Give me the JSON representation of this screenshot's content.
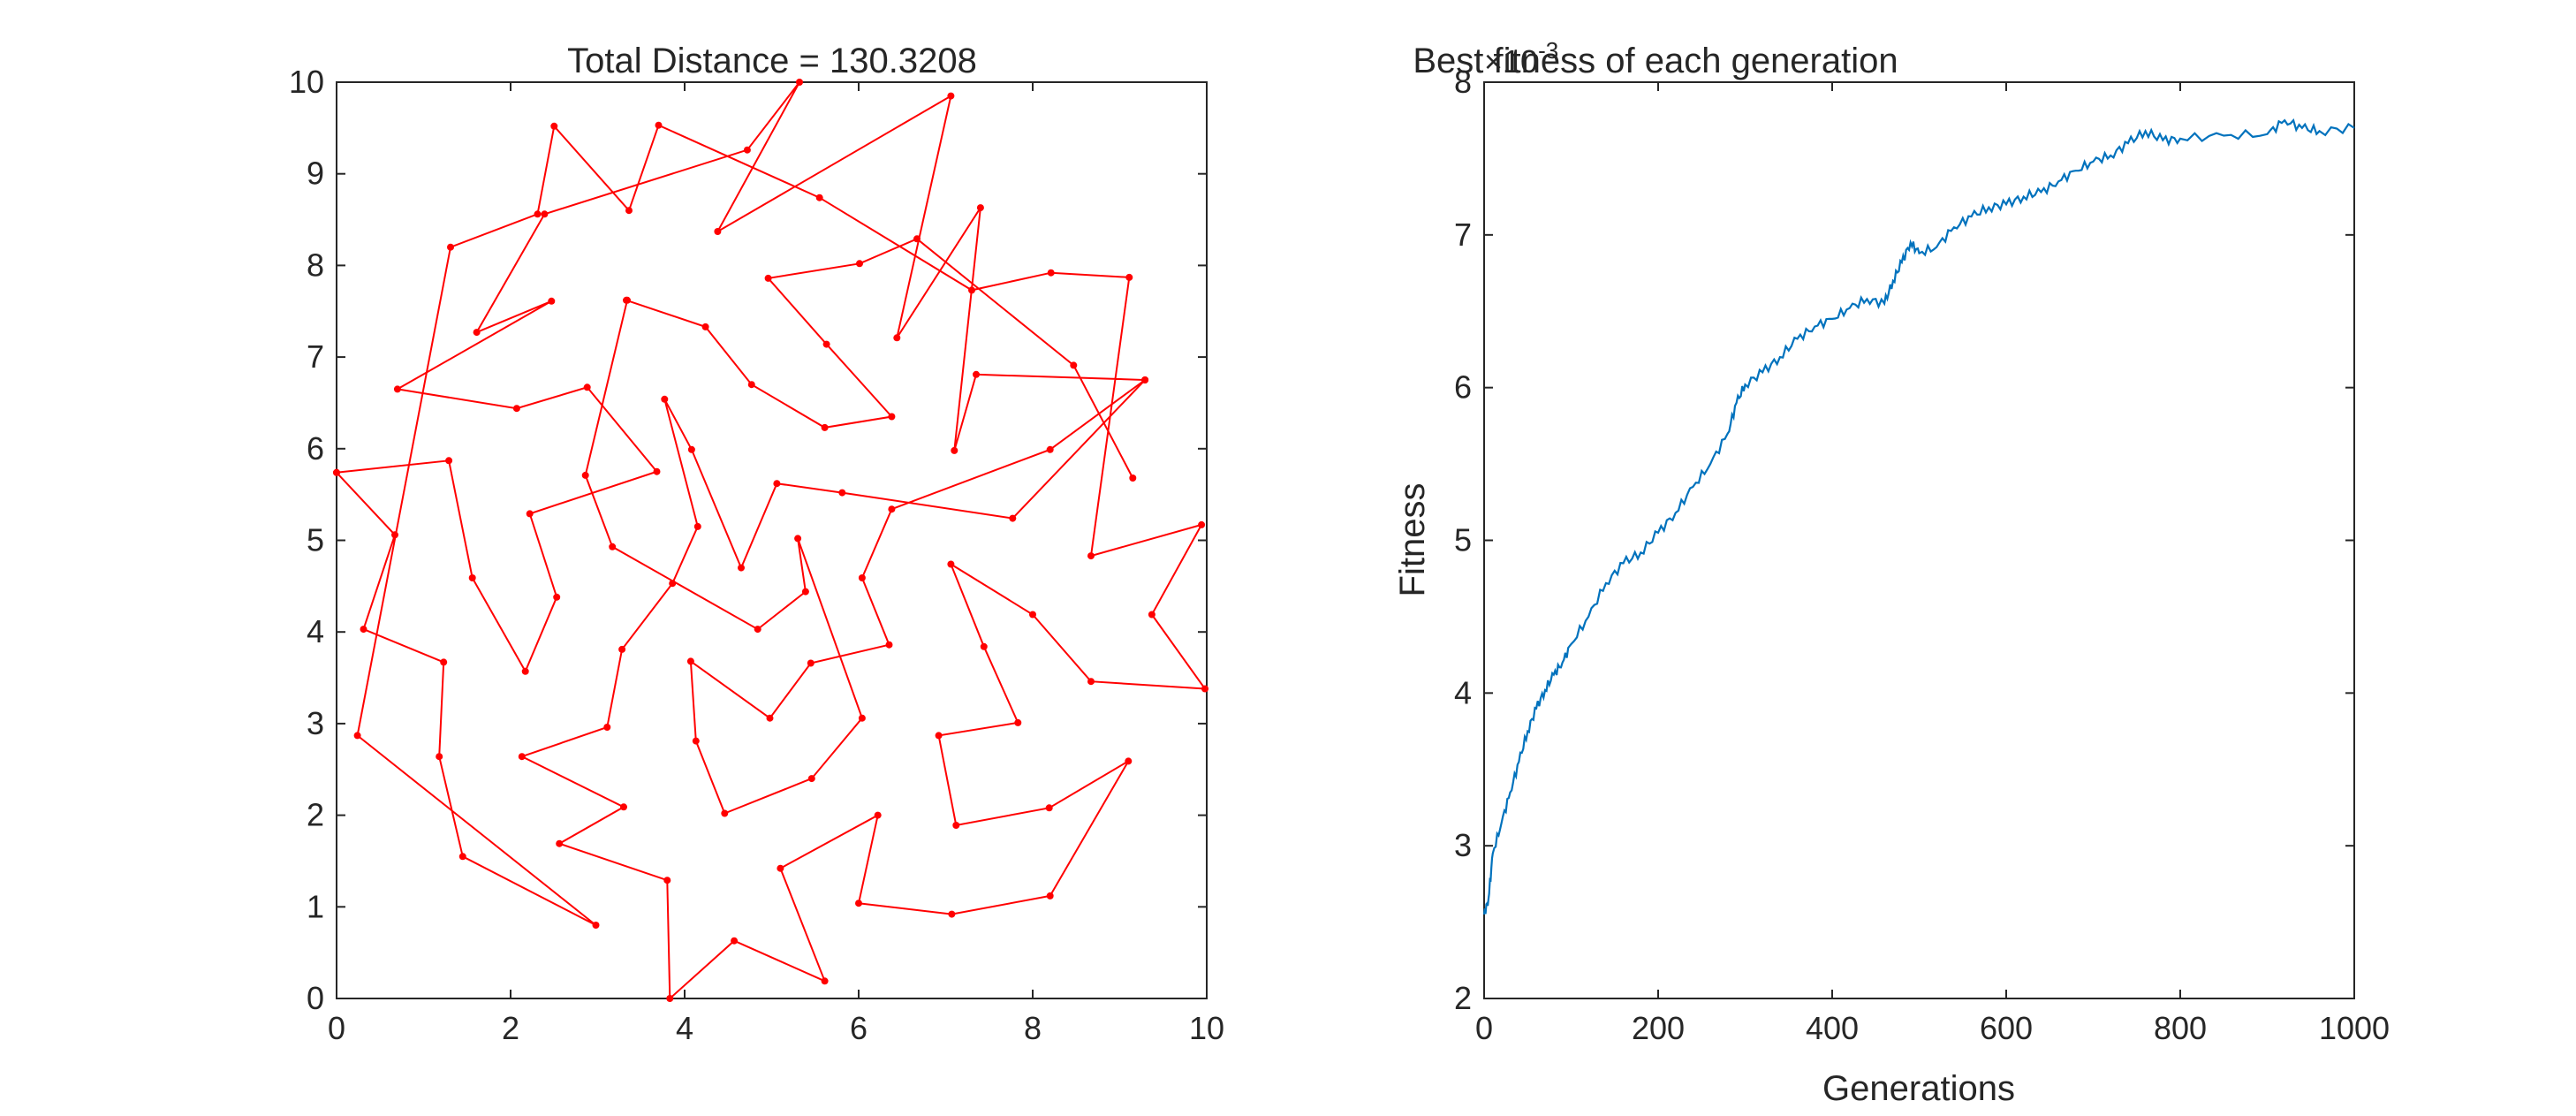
{
  "chart_data": [
    {
      "type": "line",
      "title": "Total Distance = 130.3208",
      "xlabel": "",
      "ylabel": "",
      "xlim": [
        0,
        10
      ],
      "ylim": [
        0,
        10
      ],
      "xticks": [
        "0",
        "2",
        "4",
        "6",
        "8",
        "10"
      ],
      "yticks": [
        "0",
        "1",
        "2",
        "3",
        "4",
        "5",
        "6",
        "7",
        "8",
        "9",
        "10"
      ],
      "grid": false,
      "line_color": "#ff0000",
      "marker": "dot",
      "route": [
        [
          0,
          5.74
        ],
        [
          0.67,
          5.06
        ],
        [
          0.31,
          4.03
        ],
        [
          1.23,
          3.67
        ],
        [
          1.18,
          2.64
        ],
        [
          1.45,
          1.55
        ],
        [
          2.98,
          0.8
        ],
        [
          0.24,
          2.87
        ],
        [
          1.31,
          8.2
        ],
        [
          2.31,
          8.56
        ],
        [
          2.5,
          9.52
        ],
        [
          3.36,
          8.6
        ],
        [
          3.7,
          9.53
        ],
        [
          5.55,
          8.74
        ],
        [
          7.3,
          7.73
        ],
        [
          8.21,
          7.92
        ],
        [
          9.11,
          7.87
        ],
        [
          8.67,
          4.83
        ],
        [
          9.94,
          5.17
        ],
        [
          9.37,
          4.19
        ],
        [
          9.98,
          3.38
        ],
        [
          8.67,
          3.46
        ],
        [
          8.0,
          4.19
        ],
        [
          7.06,
          4.74
        ],
        [
          7.44,
          3.84
        ],
        [
          7.83,
          3.01
        ],
        [
          6.92,
          2.87
        ],
        [
          7.12,
          1.89
        ],
        [
          8.19,
          2.08
        ],
        [
          9.1,
          2.59
        ],
        [
          8.2,
          1.12
        ],
        [
          7.07,
          0.92
        ],
        [
          6.0,
          1.04
        ],
        [
          6.22,
          2.0
        ],
        [
          5.1,
          1.42
        ],
        [
          5.61,
          0.19
        ],
        [
          4.57,
          0.63
        ],
        [
          3.83,
          0.0
        ],
        [
          3.8,
          1.29
        ],
        [
          2.56,
          1.69
        ],
        [
          3.3,
          2.09
        ],
        [
          2.13,
          2.64
        ],
        [
          3.11,
          2.96
        ],
        [
          3.28,
          3.81
        ],
        [
          3.86,
          4.53
        ],
        [
          4.15,
          5.15
        ],
        [
          3.77,
          6.54
        ],
        [
          4.08,
          5.99
        ],
        [
          4.65,
          4.7
        ],
        [
          5.06,
          5.62
        ],
        [
          5.81,
          5.52
        ],
        [
          7.77,
          5.24
        ],
        [
          9.29,
          6.75
        ],
        [
          7.35,
          6.81
        ],
        [
          7.1,
          5.98
        ],
        [
          7.4,
          8.63
        ],
        [
          6.44,
          7.21
        ],
        [
          7.06,
          9.85
        ],
        [
          4.38,
          8.37
        ],
        [
          5.32,
          10.0
        ],
        [
          4.72,
          9.26
        ],
        [
          2.39,
          8.56
        ],
        [
          1.61,
          7.27
        ],
        [
          2.47,
          7.61
        ],
        [
          0.7,
          6.65
        ],
        [
          2.07,
          6.44
        ],
        [
          2.88,
          6.67
        ],
        [
          3.68,
          5.75
        ],
        [
          2.22,
          5.29
        ],
        [
          2.53,
          4.38
        ],
        [
          2.17,
          3.57
        ],
        [
          1.56,
          4.59
        ],
        [
          1.29,
          5.87
        ],
        [
          0,
          5.74
        ]
      ],
      "extra_segments": [
        [
          [
            3.33,
            7.62
          ],
          [
            4.24,
            7.33
          ],
          [
            4.77,
            6.7
          ],
          [
            5.61,
            6.23
          ],
          [
            6.38,
            6.35
          ],
          [
            5.63,
            7.14
          ],
          [
            4.96,
            7.86
          ],
          [
            6.01,
            8.02
          ],
          [
            6.67,
            8.29
          ],
          [
            8.47,
            6.91
          ],
          [
            9.15,
            5.68
          ]
        ],
        [
          [
            3.34,
            7.62
          ],
          [
            2.86,
            5.71
          ],
          [
            3.17,
            4.93
          ],
          [
            4.84,
            4.03
          ],
          [
            5.39,
            4.44
          ],
          [
            5.3,
            5.02
          ],
          [
            6.04,
            3.06
          ],
          [
            5.46,
            2.4
          ],
          [
            4.46,
            2.02
          ],
          [
            4.13,
            2.81
          ],
          [
            4.07,
            3.68
          ],
          [
            4.98,
            3.06
          ],
          [
            5.45,
            3.66
          ],
          [
            6.35,
            3.86
          ],
          [
            6.04,
            4.59
          ],
          [
            6.38,
            5.34
          ],
          [
            8.2,
            5.99
          ],
          [
            9.29,
            6.75
          ]
        ]
      ]
    },
    {
      "type": "line",
      "title": "Best fitness of each generation",
      "xlabel": "Generations",
      "ylabel": "Fitness",
      "xlim": [
        0,
        1000
      ],
      "ylim": [
        2,
        8
      ],
      "xticks": [
        "0",
        "200",
        "400",
        "600",
        "800",
        "1000"
      ],
      "yticks": [
        "2",
        "3",
        "4",
        "5",
        "6",
        "7",
        "8"
      ],
      "y_multiplier_base": "×10",
      "y_multiplier_exp": "-3",
      "grid": false,
      "line_color": "#0072bd",
      "series": [
        {
          "x": [
            0,
            5,
            10,
            20,
            30,
            40,
            50,
            60,
            70,
            80,
            90,
            100,
            120,
            140,
            160,
            180,
            200,
            220,
            240,
            260,
            280,
            290,
            300,
            320,
            340,
            360,
            380,
            400,
            420,
            440,
            460,
            470,
            480,
            490,
            500,
            520,
            540,
            560,
            580,
            600,
            620,
            640,
            660,
            680,
            700,
            720,
            740,
            760,
            780,
            800,
            850,
            900,
            920,
            940,
            960,
            1000
          ],
          "y": [
            2.55,
            2.65,
            2.95,
            3.15,
            3.35,
            3.55,
            3.75,
            3.9,
            4.02,
            4.12,
            4.2,
            4.32,
            4.5,
            4.72,
            4.85,
            4.92,
            5.05,
            5.18,
            5.35,
            5.5,
            5.7,
            5.9,
            6.02,
            6.1,
            6.2,
            6.32,
            6.4,
            6.45,
            6.52,
            6.58,
            6.55,
            6.7,
            6.82,
            6.95,
            6.88,
            6.92,
            7.05,
            7.12,
            7.18,
            7.2,
            7.25,
            7.28,
            7.35,
            7.42,
            7.48,
            7.52,
            7.6,
            7.68,
            7.62,
            7.63,
            7.65,
            7.66,
            7.75,
            7.7,
            7.68,
            7.7
          ]
        }
      ]
    }
  ]
}
